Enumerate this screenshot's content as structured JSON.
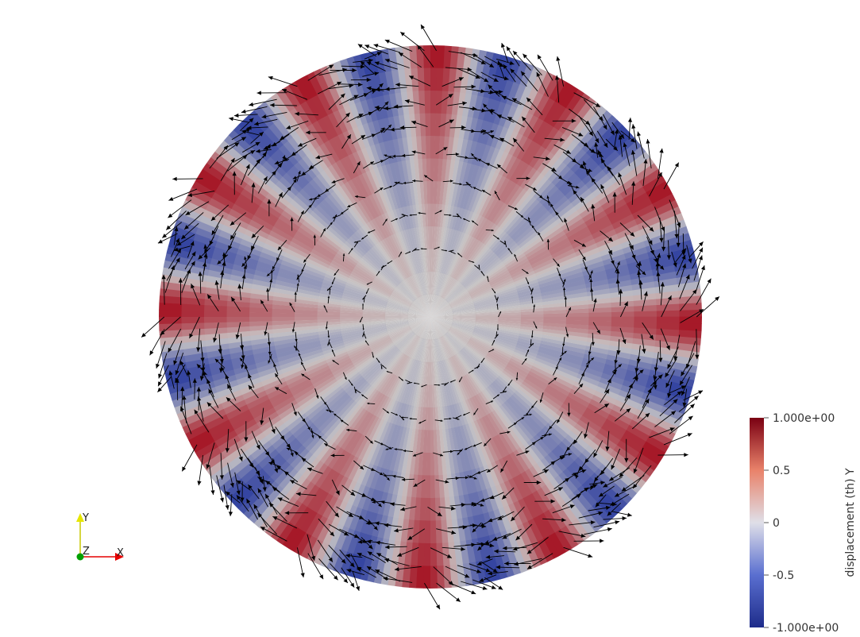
{
  "chart_data": {
    "type": "heatmap",
    "description_free": true,
    "field": {
      "name": "displacement (th) Y",
      "range": [
        -1.0,
        1.0
      ],
      "colormap": [
        "#3b4cc0",
        "#dddddd",
        "#b40426"
      ],
      "angular_mode": 12,
      "radial_profile": "increasing toward rim"
    },
    "colorbar": {
      "title": "displacement (th) Y",
      "ticks": [
        {
          "value": 1.0,
          "label": "1.000e+00"
        },
        {
          "value": 0.5,
          "label": "0.5"
        },
        {
          "value": 0.0,
          "label": "0"
        },
        {
          "value": -0.5,
          "label": "-0.5"
        },
        {
          "value": -1.0,
          "label": "-1.000e+00"
        }
      ]
    },
    "glyphs": {
      "type": "arrow",
      "color": "#000000"
    },
    "orientation_axes": {
      "x_label": "X",
      "y_label": "Y",
      "z_label": "Z",
      "colors": {
        "x": "#e60000",
        "y": "#e6e600",
        "z": "#00a000"
      }
    }
  }
}
